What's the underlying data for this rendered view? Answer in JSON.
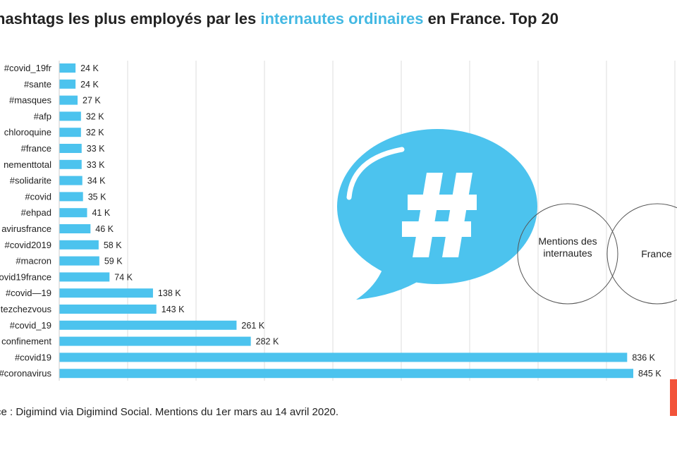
{
  "title": {
    "before": "hashtags les plus employés par les ",
    "highlight": "internautes ordinaires",
    "after": " en France. Top 20"
  },
  "source": "ce : Digimind via Digimind Social. Mentions du 1er mars au 14 avril 2020.",
  "venn": {
    "left_label": "Mentions des internautes",
    "right_label": "France"
  },
  "colors": {
    "bar": "#4cc3ee",
    "accent": "#44b9e3",
    "bubble": "#4cc3ee",
    "grid": "#dddddd",
    "tab": "#f2533a"
  },
  "chart_data": {
    "type": "bar",
    "orientation": "horizontal",
    "title": "hashtags les plus employés par les internautes ordinaires en France. Top 20",
    "xlabel": "",
    "ylabel": "",
    "xlim": [
      0,
      900000
    ],
    "grid": true,
    "categories": [
      "#covid_19fr",
      "#sante",
      "#masques",
      "#afp",
      "chloroquine",
      "#france",
      "nementtotal",
      "#solidarite",
      "#covid",
      "#ehpad",
      "avirusfrance",
      "#covid2019",
      "#macron",
      "ovid19france",
      "#covid—19",
      "tezchezvous",
      "#covid_19",
      "confinement",
      "#covid19",
      "#coronavirus"
    ],
    "values": [
      24000,
      24000,
      27000,
      32000,
      32000,
      33000,
      33000,
      34000,
      35000,
      41000,
      46000,
      58000,
      59000,
      74000,
      138000,
      143000,
      261000,
      282000,
      836000,
      845000
    ],
    "data_labels": [
      "24 K",
      "24 K",
      "27 K",
      "32 K",
      "32 K",
      "33 K",
      "33 K",
      "34 K",
      "35 K",
      "41 K",
      "46 K",
      "58 K",
      "59 K",
      "74 K",
      "138 K",
      "143 K",
      "261 K",
      "282 K",
      "836 K",
      "845 K"
    ]
  }
}
